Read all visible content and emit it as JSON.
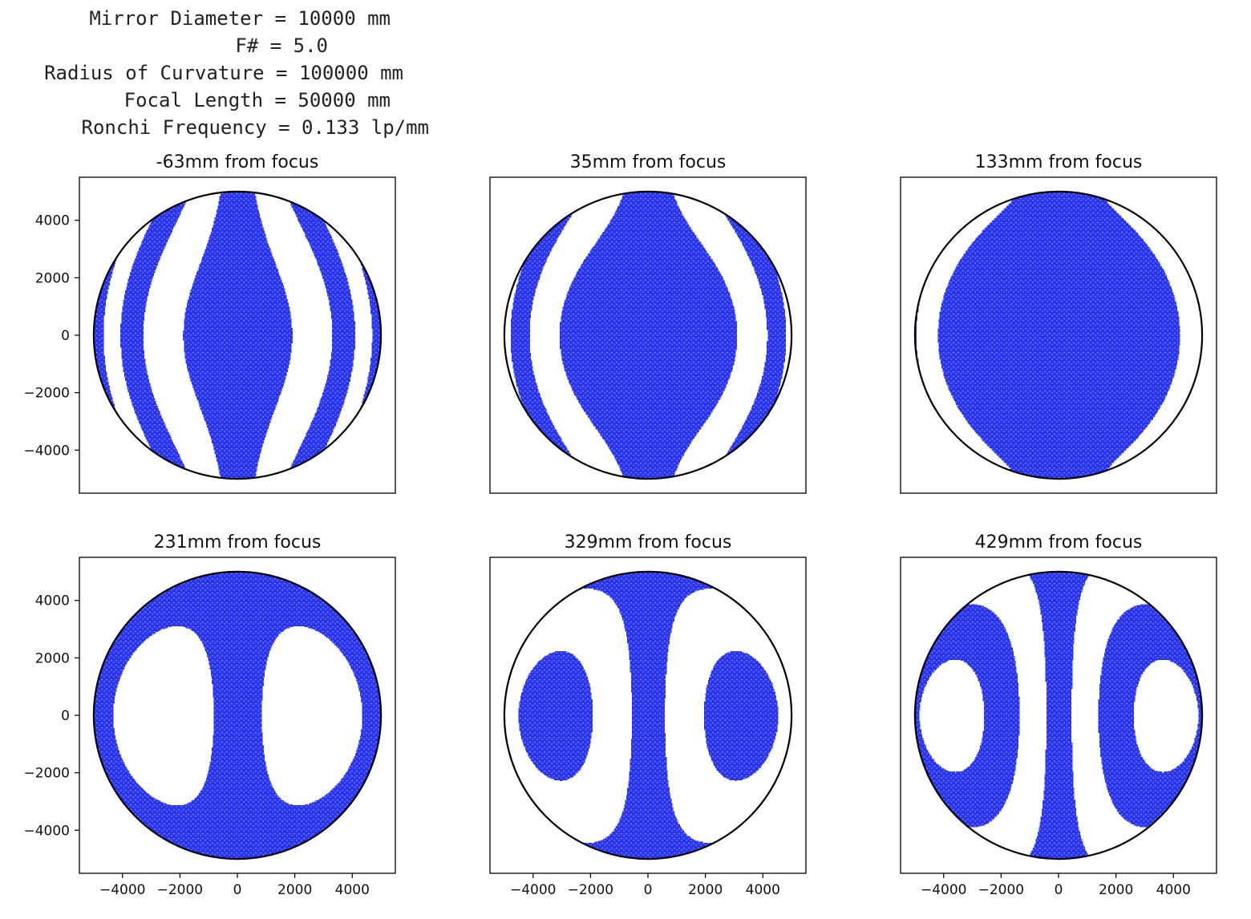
{
  "header": {
    "lines": [
      "Mirror Diameter = 10000 mm",
      "F# = 5.0",
      "Radius of Curvature = 100000 mm",
      "Focal Length = 50000 mm",
      "Ronchi Frequency = 0.133 lp/mm"
    ]
  },
  "colors": {
    "band": "#1f2bef",
    "mirror_outline": "#000000",
    "axes": "#000000",
    "background": "#ffffff"
  },
  "chart_data": {
    "type": "scatter",
    "description_kind": "ronchigram",
    "mirror": {
      "diameter_mm": 10000,
      "f_number": 5.0,
      "radius_of_curvature_mm": 100000,
      "focal_length_mm": 50000,
      "ronchi_frequency_lp_per_mm": 0.133
    },
    "xlim": [
      -5500,
      5500
    ],
    "ylim": [
      -5500,
      5500
    ],
    "xticks": [
      -4000,
      -2000,
      0,
      2000,
      4000
    ],
    "yticks": [
      -4000,
      -2000,
      0,
      2000,
      4000
    ],
    "xtick_labels": [
      "−4000",
      "−2000",
      "0",
      "2000",
      "4000"
    ],
    "ytick_labels": [
      "−4000",
      "−2000",
      "0",
      "2000",
      "4000"
    ],
    "grid": false,
    "panels": [
      {
        "title": "-63mm from focus",
        "offset_mm": -63,
        "phase": 0.0
      },
      {
        "title": "35mm from focus",
        "offset_mm": 35,
        "phase": 0.0
      },
      {
        "title": "133mm from focus",
        "offset_mm": 133,
        "phase": 0.0
      },
      {
        "title": "231mm from focus",
        "offset_mm": 231,
        "phase": 0.0
      },
      {
        "title": "329mm from focus",
        "offset_mm": 329,
        "phase": 0.0
      },
      {
        "title": "429mm from focus",
        "offset_mm": 429,
        "phase": 0.0
      }
    ]
  }
}
